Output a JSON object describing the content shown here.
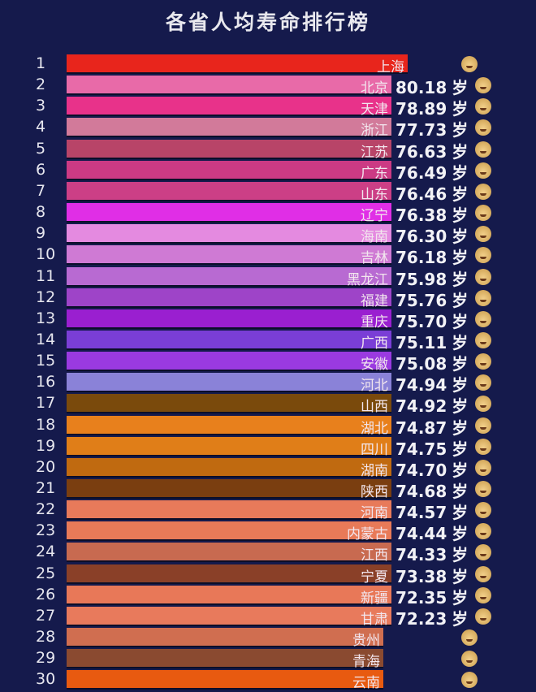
{
  "chart_data": {
    "type": "bar",
    "orientation": "horizontal",
    "title": "各省人均寿命排行榜",
    "unit": "岁",
    "background": "#151a4c",
    "icon": "old-man-face-icon",
    "rows": [
      {
        "rank": "1",
        "province": "上海",
        "value": null,
        "color": "#e8251c"
      },
      {
        "rank": "2",
        "province": "北京",
        "value": "80.18",
        "color": "#e86aa8"
      },
      {
        "rank": "3",
        "province": "天津",
        "value": "78.89",
        "color": "#e8328a"
      },
      {
        "rank": "4",
        "province": "浙江",
        "value": "77.73",
        "color": "#d27a9a"
      },
      {
        "rank": "5",
        "province": "江苏",
        "value": "76.63",
        "color": "#b84468"
      },
      {
        "rank": "6",
        "province": "广东",
        "value": "76.49",
        "color": "#cc3a84"
      },
      {
        "rank": "7",
        "province": "山东",
        "value": "76.46",
        "color": "#cc3f86"
      },
      {
        "rank": "8",
        "province": "辽宁",
        "value": "76.38",
        "color": "#e02ee6"
      },
      {
        "rank": "9",
        "province": "海南",
        "value": "76.30",
        "color": "#e48ae0"
      },
      {
        "rank": "10",
        "province": "吉林",
        "value": "76.18",
        "color": "#cf7ad4"
      },
      {
        "rank": "11",
        "province": "黑龙江",
        "value": "75.98",
        "color": "#b86ad2"
      },
      {
        "rank": "12",
        "province": "福建",
        "value": "75.76",
        "color": "#9e44c8"
      },
      {
        "rank": "13",
        "province": "重庆",
        "value": "75.70",
        "color": "#9a1fd0"
      },
      {
        "rank": "14",
        "province": "广西",
        "value": "75.11",
        "color": "#7a3ed6"
      },
      {
        "rank": "15",
        "province": "安徽",
        "value": "75.08",
        "color": "#9a3ae0"
      },
      {
        "rank": "16",
        "province": "河北",
        "value": "74.94",
        "color": "#8a82d8"
      },
      {
        "rank": "17",
        "province": "山西",
        "value": "74.92",
        "color": "#7a4a0c"
      },
      {
        "rank": "18",
        "province": "湖北",
        "value": "74.87",
        "color": "#e8801c"
      },
      {
        "rank": "19",
        "province": "四川",
        "value": "74.75",
        "color": "#e07e18"
      },
      {
        "rank": "20",
        "province": "湖南",
        "value": "74.70",
        "color": "#c06a10"
      },
      {
        "rank": "21",
        "province": "陕西",
        "value": "74.68",
        "color": "#7a3e10"
      },
      {
        "rank": "22",
        "province": "河南",
        "value": "74.57",
        "color": "#e87a5a"
      },
      {
        "rank": "23",
        "province": "内蒙古",
        "value": "74.44",
        "color": "#e87a58"
      },
      {
        "rank": "24",
        "province": "江西",
        "value": "74.33",
        "color": "#c86a50"
      },
      {
        "rank": "25",
        "province": "宁夏",
        "value": "73.38",
        "color": "#8a4028"
      },
      {
        "rank": "26",
        "province": "新疆",
        "value": "72.35",
        "color": "#e87858"
      },
      {
        "rank": "27",
        "province": "甘肃",
        "value": "72.23",
        "color": "#e87a5c"
      },
      {
        "rank": "28",
        "province": "贵州",
        "value": null,
        "color": "#d06e50"
      },
      {
        "rank": "29",
        "province": "青海",
        "value": null,
        "color": "#8a4a30"
      },
      {
        "rank": "30",
        "province": "云南",
        "value": null,
        "color": "#e85a10"
      }
    ]
  }
}
